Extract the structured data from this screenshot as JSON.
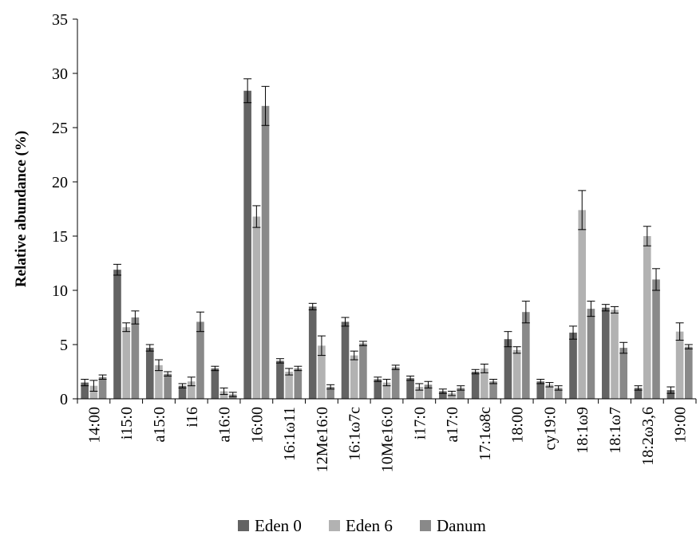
{
  "chart_data": {
    "type": "bar",
    "title": "",
    "xlabel": "",
    "ylabel": "Relative abundance (%)",
    "ylim": [
      0,
      35
    ],
    "yticks": [
      0,
      5,
      10,
      15,
      20,
      25,
      30,
      35
    ],
    "grid": false,
    "legend_position": "bottom",
    "categories": [
      "14:00",
      "i15:0",
      "a15:0",
      "i16",
      "a16:0",
      "16:00",
      "16:1ω11",
      "12Me16:0",
      "16:1ω7c",
      "10Me16:0",
      "i17:0",
      "a17:0",
      "17:1ω8c",
      "18:00",
      "cy19:0",
      "18:1ω9",
      "18:1ω7",
      "18:2ω3,6",
      "19:00"
    ],
    "series": [
      {
        "name": "Eden 0",
        "color": "#636363",
        "values": [
          1.5,
          11.9,
          4.7,
          1.2,
          2.8,
          28.4,
          3.5,
          8.5,
          7.1,
          1.8,
          1.9,
          0.7,
          2.5,
          5.5,
          1.6,
          6.1,
          8.4,
          1.0,
          0.8
        ],
        "errors": [
          0.3,
          0.5,
          0.3,
          0.2,
          0.2,
          1.1,
          0.2,
          0.3,
          0.4,
          0.2,
          0.2,
          0.2,
          0.2,
          0.7,
          0.2,
          0.6,
          0.3,
          0.2,
          0.3
        ]
      },
      {
        "name": "Eden 6",
        "color": "#b2b2b2",
        "values": [
          1.2,
          6.6,
          3.1,
          1.6,
          0.7,
          16.8,
          2.5,
          4.9,
          4.0,
          1.5,
          1.1,
          0.5,
          2.8,
          4.5,
          1.3,
          17.4,
          8.2,
          15.0,
          6.2
        ],
        "errors": [
          0.5,
          0.4,
          0.5,
          0.4,
          0.3,
          1.0,
          0.3,
          0.9,
          0.4,
          0.3,
          0.3,
          0.2,
          0.4,
          0.3,
          0.2,
          1.8,
          0.3,
          0.9,
          0.8
        ]
      },
      {
        "name": "Danum",
        "color": "#898989",
        "values": [
          2.0,
          7.5,
          2.3,
          7.1,
          0.4,
          27.0,
          2.8,
          1.1,
          5.1,
          2.9,
          1.3,
          1.0,
          1.6,
          8.0,
          1.0,
          8.3,
          4.7,
          11.0,
          4.8
        ],
        "errors": [
          0.2,
          0.6,
          0.2,
          0.9,
          0.2,
          1.8,
          0.2,
          0.2,
          0.2,
          0.2,
          0.3,
          0.2,
          0.2,
          1.0,
          0.2,
          0.7,
          0.5,
          1.0,
          0.2
        ]
      }
    ]
  }
}
